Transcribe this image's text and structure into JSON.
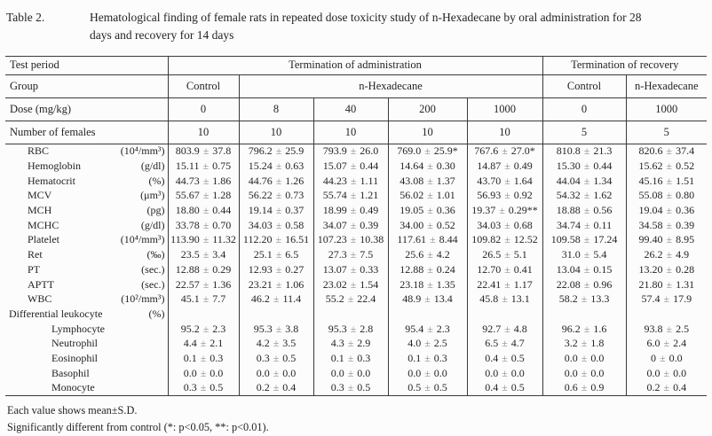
{
  "title": {
    "label": "Table 2.",
    "line1": "Hematological finding of female rats in repeated dose toxicity study of n-Hexadecane by oral administration for 28",
    "line2": "days and recovery for 14 days"
  },
  "table": {
    "header": {
      "test_period_label": "Test period",
      "administration": "Termination of administration",
      "recovery": "Termination of recovery",
      "group_label": "Group",
      "groups": [
        "Control",
        "n-Hexadecane",
        "Control",
        "n-Hexadecane"
      ],
      "dose_label": "Dose (mg/kg)",
      "doses": [
        "0",
        "8",
        "40",
        "200",
        "1000",
        "0",
        "1000"
      ],
      "n_label": "Number of females",
      "n_females": [
        "10",
        "10",
        "10",
        "10",
        "10",
        "5",
        "5"
      ]
    },
    "rows": [
      {
        "name": "RBC",
        "unit": "(10⁴/mm³)",
        "level": "item",
        "values": [
          "803.9 ± 37.8",
          "796.2 ± 25.9",
          "793.9 ± 26.0",
          "769.0 ± 25.9*",
          "767.6 ± 27.0*",
          "810.8 ± 21.3",
          "820.6 ± 37.4"
        ]
      },
      {
        "name": "Hemoglobin",
        "unit": "(g/dl)",
        "level": "item",
        "values": [
          "15.11 ± 0.75",
          "15.24 ± 0.63",
          "15.07 ± 0.44",
          "14.64 ± 0.30",
          "14.87 ± 0.49",
          "15.30 ± 0.44",
          "15.62 ± 0.52"
        ]
      },
      {
        "name": "Hematocrit",
        "unit": "(%)",
        "level": "item",
        "values": [
          "44.73 ± 1.86",
          "44.76 ± 1.26",
          "44.23 ± 1.11",
          "43.08 ± 1.37",
          "43.70 ± 1.64",
          "44.04 ± 1.34",
          "45.16 ± 1.51"
        ]
      },
      {
        "name": "MCV",
        "unit": "(μm³)",
        "level": "item",
        "values": [
          "55.67 ± 1.28",
          "56.22 ± 0.73",
          "55.74 ± 1.21",
          "56.02 ± 1.01",
          "56.93 ± 0.92",
          "54.32 ± 1.62",
          "55.08 ± 0.80"
        ]
      },
      {
        "name": "MCH",
        "unit": "(pg)",
        "level": "item",
        "values": [
          "18.80 ± 0.44",
          "19.14 ± 0.37",
          "18.99 ± 0.49",
          "19.05 ± 0.36",
          "19.37 ± 0.29**",
          "18.88 ± 0.56",
          "19.04 ± 0.36"
        ]
      },
      {
        "name": "MCHC",
        "unit": "(g/dl)",
        "level": "item",
        "values": [
          "33.78 ± 0.70",
          "34.03 ± 0.58",
          "34.07 ± 0.39",
          "34.00 ± 0.52",
          "34.03 ± 0.68",
          "34.74 ± 0.11",
          "34.58 ± 0.39"
        ]
      },
      {
        "name": "Platelet",
        "unit": "(10⁴/mm³)",
        "level": "item",
        "values": [
          "113.90 ± 11.32",
          "112.20 ± 16.51",
          "107.23 ± 10.38",
          "117.61 ± 8.44",
          "109.82 ± 12.52",
          "109.58 ± 17.24",
          "99.40 ± 8.95"
        ]
      },
      {
        "name": "Ret",
        "unit": "(‰)",
        "level": "item",
        "values": [
          "23.5 ± 3.4",
          "25.1 ± 6.5",
          "27.3 ± 7.5",
          "25.6 ± 4.2",
          "26.5 ± 5.1",
          "31.0 ± 5.4",
          "26.2 ± 4.9"
        ]
      },
      {
        "name": "PT",
        "unit": "(sec.)",
        "level": "item",
        "values": [
          "12.88 ± 0.29",
          "12.93 ± 0.27",
          "13.07 ± 0.33",
          "12.88 ± 0.24",
          "12.70 ± 0.41",
          "13.04 ± 0.15",
          "13.20 ± 0.28"
        ]
      },
      {
        "name": "APTT",
        "unit": "(sec.)",
        "level": "item",
        "values": [
          "22.57 ± 1.36",
          "23.21 ± 1.06",
          "23.02 ± 1.54",
          "23.18 ± 1.35",
          "22.41 ± 1.17",
          "22.08 ± 0.96",
          "21.80 ± 1.31"
        ]
      },
      {
        "name": "WBC",
        "unit": "(10²/mm³)",
        "level": "item",
        "values": [
          "45.1 ± 7.7",
          "46.2 ± 11.4",
          "55.2 ± 22.4",
          "48.9 ± 13.4",
          "45.8 ± 13.1",
          "58.2 ± 13.3",
          "57.4 ± 17.9"
        ]
      },
      {
        "name": "Differential leukocyte",
        "unit": "(%)",
        "level": "section",
        "values": [
          "",
          "",
          "",
          "",
          "",
          "",
          ""
        ]
      },
      {
        "name": "Lymphocyte",
        "unit": "",
        "level": "subitem",
        "values": [
          "95.2 ± 2.3",
          "95.3 ± 3.8",
          "95.3 ± 2.8",
          "95.4 ± 2.3",
          "92.7 ± 4.8",
          "96.2 ± 1.6",
          "93.8 ± 2.5"
        ]
      },
      {
        "name": "Neutrophil",
        "unit": "",
        "level": "subitem",
        "values": [
          "4.4 ± 2.1",
          "4.2 ± 3.5",
          "4.3 ± 2.9",
          "4.0 ± 2.5",
          "6.5 ± 4.7",
          "3.2 ± 1.8",
          "6.0 ± 2.4"
        ]
      },
      {
        "name": "Eosinophil",
        "unit": "",
        "level": "subitem",
        "values": [
          "0.1 ± 0.3",
          "0.3 ± 0.5",
          "0.1 ± 0.3",
          "0.1 ± 0.3",
          "0.4 ± 0.5",
          "0.0 ± 0.0",
          "0 ± 0.0"
        ]
      },
      {
        "name": "Basophil",
        "unit": "",
        "level": "subitem",
        "values": [
          "0.0 ± 0.0",
          "0.0 ± 0.0",
          "0.0 ± 0.0",
          "0.0 ± 0.0",
          "0.0 ± 0.0",
          "0.0 ± 0.0",
          "0.0 ± 0.0"
        ]
      },
      {
        "name": "Monocyte",
        "unit": "",
        "level": "subitem",
        "values": [
          "0.3 ± 0.5",
          "0.2 ± 0.4",
          "0.3 ± 0.5",
          "0.5 ± 0.5",
          "0.4 ± 0.5",
          "0.6 ± 0.9",
          "0.2 ± 0.4"
        ]
      }
    ]
  },
  "notes": [
    "Each value shows mean±S.D.",
    "Significantly different from control (*: p<0.05, **: p<0.01)."
  ],
  "colors": {
    "text": "#242424",
    "rule": "#3a3a3a",
    "plus_minus": "#8f8f8f",
    "background": "#fcfcfc"
  }
}
